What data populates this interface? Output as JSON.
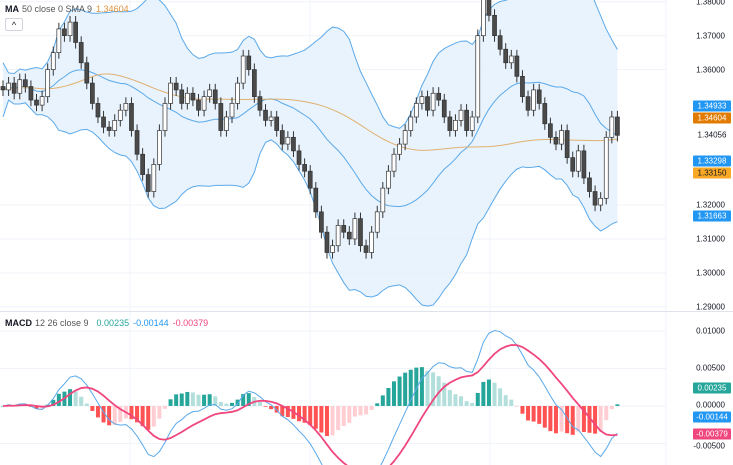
{
  "price_legend": {
    "name": "MA",
    "params": "50 close 0 SMA 9",
    "value": "1.34604",
    "collapse_label": "^"
  },
  "macd_legend": {
    "name": "MACD",
    "params": "12 26 close 9",
    "histogram": "0.00235",
    "macd": "-0.00144",
    "signal": "-0.00379"
  },
  "colors": {
    "up_body": "#ffffff",
    "down_body": "#4a4a4a",
    "wick": "#333333",
    "bb_line": "#5aa9ea",
    "bb_fill": "#e3f0fd",
    "ma": "#e0b070",
    "macd": "#5aa9ea",
    "signal": "#f0467e",
    "hist_up_strong": "#26a69a",
    "hist_up_weak": "#b2dfdb",
    "hist_down_strong": "#ff5252",
    "hist_down_weak": "#ffcdd2"
  },
  "chart_data": [
    {
      "type": "candlestick",
      "title": "",
      "ylim": [
        1.28903,
        1.38053
      ],
      "y_ticks": [
        "1.38000",
        "1.37000",
        "1.36000",
        "1.32000",
        "1.31000",
        "1.30000",
        "1.29000"
      ],
      "y_tick_values": [
        1.38,
        1.37,
        1.36,
        1.32,
        1.31,
        1.3,
        1.29
      ],
      "close": [
        1.354,
        1.356,
        1.353,
        1.357,
        1.355,
        1.351,
        1.3495,
        1.352,
        1.36,
        1.365,
        1.372,
        1.37,
        1.374,
        1.368,
        1.362,
        1.356,
        1.35,
        1.346,
        1.343,
        1.342,
        1.345,
        1.348,
        1.35,
        1.342,
        1.335,
        1.329,
        1.324,
        1.332,
        1.342,
        1.35,
        1.356,
        1.354,
        1.35,
        1.353,
        1.351,
        1.348,
        1.352,
        1.354,
        1.35,
        1.342,
        1.346,
        1.35,
        1.356,
        1.364,
        1.36,
        1.352,
        1.348,
        1.345,
        1.346,
        1.342,
        1.338,
        1.34,
        1.336,
        1.332,
        1.33,
        1.325,
        1.318,
        1.312,
        1.306,
        1.308,
        1.314,
        1.312,
        1.31,
        1.316,
        1.308,
        1.306,
        1.312,
        1.318,
        1.325,
        1.33,
        1.335,
        1.338,
        1.342,
        1.346,
        1.35,
        1.352,
        1.348,
        1.353,
        1.351,
        1.346,
        1.342,
        1.345,
        1.348,
        1.342,
        1.346,
        1.37,
        1.382,
        1.376,
        1.37,
        1.366,
        1.362,
        1.364,
        1.358,
        1.352,
        1.348,
        1.354,
        1.35,
        1.344,
        1.34,
        1.338,
        1.342,
        1.334,
        1.33,
        1.336,
        1.328,
        1.324,
        1.32,
        1.322,
        1.34,
        1.346,
        1.3406
      ],
      "price_tags": [
        {
          "label": "1.34933",
          "value": 1.34933,
          "color": "#2196f3",
          "text_color": "#ffffff"
        },
        {
          "label": "1.34604",
          "value": 1.34604,
          "color": "#e07b00",
          "text_color": "#ffffff"
        },
        {
          "label": "1.34056",
          "value": 1.34056,
          "color": "#ffffff",
          "text_color": "#131722"
        },
        {
          "label": "1.33298",
          "value": 1.33298,
          "color": "#2196f3",
          "text_color": "#ffffff"
        },
        {
          "label": "1.33150",
          "value": 1.3315,
          "color": "#f9a825",
          "text_color": "#131722"
        },
        {
          "label": "1.31663",
          "value": 1.31663,
          "color": "#2196f3",
          "text_color": "#ffffff"
        }
      ]
    },
    {
      "type": "macd",
      "ylim": [
        -0.00787,
        0.01253
      ],
      "y_ticks": [
        "0.01000",
        "0.00500",
        "0.00000",
        "-0.00500"
      ],
      "y_tick_values": [
        0.01,
        0.005,
        0,
        -0.005
      ],
      "value_tags": [
        {
          "label": "0.00235",
          "value": 0.00235,
          "color": "#26a69a"
        },
        {
          "label": "-0.00144",
          "value": -0.00144,
          "color": "#2196f3"
        },
        {
          "label": "-0.00379",
          "value": -0.00379,
          "color": "#f0467e"
        }
      ]
    }
  ]
}
